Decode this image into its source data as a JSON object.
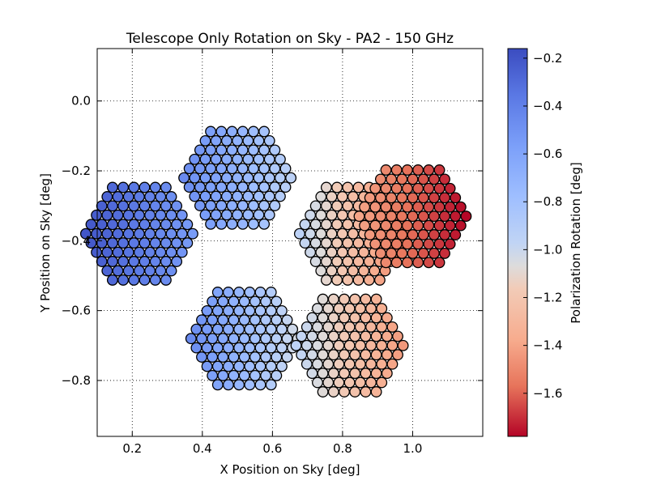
{
  "chart_data": {
    "type": "scatter",
    "title": "Telescope Only Rotation on Sky - PA2 - 150 GHz",
    "xlabel": "X Position on Sky [deg]",
    "ylabel": "Y Position on Sky [deg]",
    "xlim": [
      0.1,
      1.2
    ],
    "ylim": [
      -0.96,
      0.15
    ],
    "xticks": [
      0.2,
      0.4,
      0.6,
      0.8,
      1.0
    ],
    "xtick_labels": [
      "0.2",
      "0.4",
      "0.6",
      "0.8",
      "1.0"
    ],
    "yticks": [
      0.0,
      -0.2,
      -0.4,
      -0.6,
      -0.8
    ],
    "ytick_labels": [
      "0.0",
      "−0.2",
      "−0.4",
      "−0.6",
      "−0.8"
    ],
    "grid": true,
    "colormap": "coolwarm (reversed)",
    "colorbar": {
      "label": "Polarization Rotation [deg]",
      "range": [
        -1.78,
        -0.16
      ],
      "ticks": [
        -0.2,
        -0.4,
        -0.6,
        -0.8,
        -1.0,
        -1.2,
        -1.4,
        -1.6
      ],
      "tick_labels": [
        "−0.2",
        "−0.4",
        "−0.6",
        "−0.8",
        "−1.0",
        "−1.2",
        "−1.4",
        "−1.6"
      ],
      "top_color": "#3b4cc0",
      "middle_color": "#dddcdc",
      "bottom_color": "#b40426"
    },
    "wafers": [
      {
        "region": "left",
        "center": [
          0.22,
          -0.38
        ],
        "value_at_left": -0.2,
        "value_at_right": -0.55
      },
      {
        "region": "upper",
        "center": [
          0.5,
          -0.22
        ],
        "value_at_left": -0.45,
        "value_at_right": -0.95
      },
      {
        "region": "lower",
        "center": [
          0.52,
          -0.68
        ],
        "value_at_left": -0.45,
        "value_at_right": -1.05
      },
      {
        "region": "middle-right",
        "center": [
          0.83,
          -0.38
        ],
        "value_at_left": -0.95,
        "value_at_right": -1.55
      },
      {
        "region": "right",
        "center": [
          1.0,
          -0.33
        ],
        "value_at_left": -1.4,
        "value_at_right": -1.78
      },
      {
        "region": "lower-right",
        "center": [
          0.82,
          -0.7
        ],
        "value_at_left": -0.95,
        "value_at_right": -1.45
      }
    ],
    "marker": {
      "edge_color": "#000000",
      "shape": "circle"
    }
  }
}
